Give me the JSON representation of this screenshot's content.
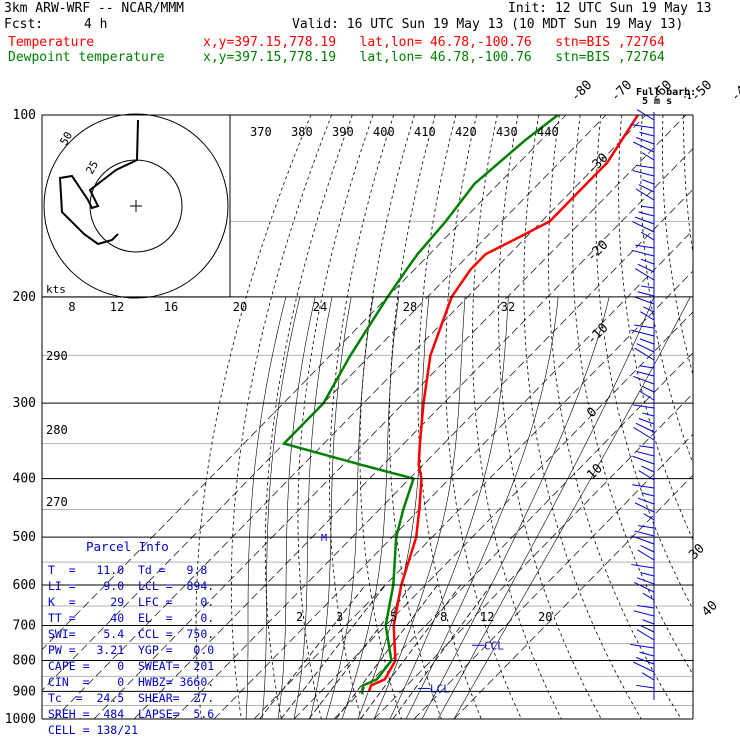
{
  "header": {
    "model": "3km ARW-WRF -- NCAR/MMM",
    "init": "Init: 12 UTC Sun 19 May 13",
    "fcst_label": "Fcst:",
    "fcst_value": "4 h",
    "valid": "Valid: 16 UTC Sun 19 May 13 (10 MDT Sun 19 May 13)",
    "temp_label": "Temperature",
    "temp_info": "x,y=397.15,778.19   lat,lon= 46.78,-100.76   stn=BIS ,72764",
    "dew_label": "Dewpoint temperature",
    "dew_info": "x,y=397.15,778.19   lat,lon= 46.78,-100.76   stn=BIS ,72764"
  },
  "colors": {
    "temperature": "#ff0000",
    "dewpoint": "#008000",
    "parcel_text": "#0000cc",
    "isobar": "#000000",
    "grid_gray": "#b4b4b4"
  },
  "chart_data": {
    "type": "line",
    "title": "",
    "xlabel": "",
    "ylabel": "",
    "y_scale": "log-pressure",
    "ylim": [
      1000,
      100
    ],
    "pressure_levels": [
      100,
      200,
      300,
      400,
      500,
      600,
      700,
      800,
      900,
      1000
    ],
    "isotherms": [
      -80,
      -70,
      -60,
      -50,
      -40,
      -30,
      -20,
      -10,
      0,
      10,
      20,
      30,
      40
    ],
    "isentropes_top": [
      370,
      380,
      390,
      400,
      410,
      420,
      430,
      440
    ],
    "isentropes_left": [
      290,
      280,
      270
    ],
    "mixing_ratios": [
      2,
      3,
      5,
      8,
      12,
      20
    ],
    "series": [
      {
        "name": "Temperature",
        "pressure": [
          900,
          880,
          860,
          800,
          700,
          600,
          500,
          450,
          400,
          380,
          350,
          300,
          250,
          200,
          180,
          170,
          160,
          150,
          130,
          120,
          100
        ],
        "values": [
          12,
          11,
          13,
          11,
          2,
          -6,
          -14,
          -20,
          -27,
          -31,
          -36,
          -45,
          -55,
          -64,
          -66,
          -66,
          -62,
          -58,
          -58,
          -58,
          -62
        ]
      },
      {
        "name": "Dewpoint temperature",
        "pressure": [
          910,
          880,
          860,
          800,
          700,
          600,
          500,
          450,
          400,
          380,
          350,
          300,
          250,
          200,
          180,
          170,
          150,
          130,
          110,
          100
        ],
        "values": [
          11,
          9,
          11,
          10,
          0,
          -8,
          -19,
          -24,
          -29,
          -45,
          -70,
          -70,
          -75,
          -80,
          -82,
          -83,
          -84,
          -86,
          -84,
          -82
        ]
      }
    ],
    "markers": {
      "lcl_label": "LCL",
      "ccl_label": "CCL",
      "el_label": "M"
    }
  },
  "hodograph": {
    "unit_label": "kts",
    "ring_labels": [
      "25",
      "50"
    ],
    "speed_axis_labels": [
      "8",
      "12",
      "16",
      "20",
      "24",
      "28",
      "32"
    ],
    "u": [
      3,
      10,
      15,
      18,
      20,
      22,
      26,
      30,
      36,
      40,
      45,
      48,
      52,
      55,
      58,
      62,
      66,
      68
    ],
    "v": [
      -30,
      -28,
      -26,
      -20,
      -8,
      0,
      4,
      12,
      18,
      22,
      25,
      28,
      32,
      38,
      45,
      54,
      60,
      64
    ]
  },
  "wind_barbs": {
    "title": "Full barb:",
    "unit": "5 m s",
    "unit_sup": "-1"
  },
  "parcel_info": {
    "title": "Parcel Info",
    "rows": [
      "T  =   11.0  Td =   9.8",
      "LI =    9.0  LCL =  894.",
      "K  =     29  LFC =    0.",
      "TT =     40  EL  =    0.",
      "SWI=    5.4  CCL =  750.",
      "PW =   3.21  YGP =   0.0",
      "CAPE =    0  SWEAT=  201",
      "CIN  =    0  HWBZ= 3660.",
      "Tc  =  24.5  SHEAR=  27.",
      "SREH =  484  LAPSE=  5.6",
      "CELL = 138/21"
    ]
  }
}
